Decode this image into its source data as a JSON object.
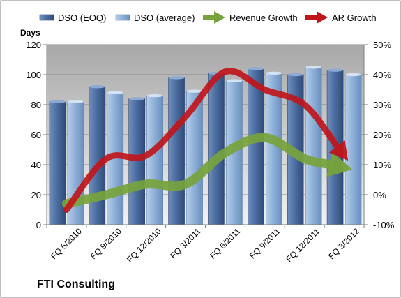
{
  "company": "FTI Consulting",
  "chart_data": {
    "type": "bar",
    "title": "",
    "categories": [
      "FQ 6/2010",
      "FQ 9/2010",
      "FQ 12/2010",
      "FQ 3/2011",
      "FQ 6/2011",
      "FQ 9/2011",
      "FQ 12/2011",
      "FQ 3/2012"
    ],
    "y_left": {
      "label": "Days",
      "min": 0,
      "max": 120,
      "step": 20,
      "ticks": [
        "0",
        "20",
        "40",
        "60",
        "80",
        "100",
        "120"
      ]
    },
    "y_right": {
      "min": -10,
      "max": 50,
      "step": 10,
      "ticks": [
        "-10%",
        "0%",
        "10%",
        "20%",
        "30%",
        "40%",
        "50%"
      ]
    },
    "grid": true,
    "legend_position": "top",
    "series": [
      {
        "name": "DSO (EOQ)",
        "kind": "bar",
        "axis": "left",
        "color": "#4a6a9b",
        "values": [
          82,
          92,
          84,
          98,
          101,
          104,
          100,
          103
        ]
      },
      {
        "name": "DSO (average)",
        "kind": "bar",
        "axis": "left",
        "color": "#8fb1d8",
        "values": [
          82,
          88,
          86,
          89,
          96,
          101,
          105,
          100
        ]
      },
      {
        "name": "Revenue Growth",
        "kind": "arrow-line",
        "axis": "right",
        "color": "#77a33c",
        "values": [
          -3,
          0,
          3.5,
          3.5,
          14,
          19,
          12,
          9
        ]
      },
      {
        "name": "AR Growth",
        "kind": "arrow-line",
        "axis": "right",
        "color": "#c0161b",
        "values": [
          -5,
          12,
          13,
          26,
          41,
          35,
          30,
          13
        ]
      }
    ]
  }
}
